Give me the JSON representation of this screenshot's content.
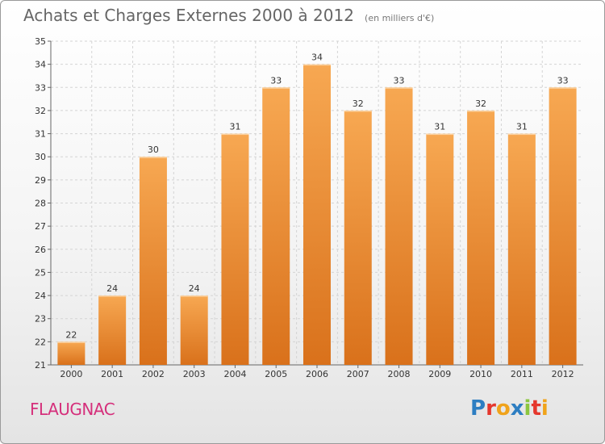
{
  "header": {
    "title": "Achats et Charges Externes 2000 à 2012",
    "unit": "(en milliers d'€)"
  },
  "footer": {
    "commune": "FLAUGNAC",
    "logo_text": "Proxiti"
  },
  "colors": {
    "bar_top": "#f7a852",
    "bar_bottom": "#d9711b",
    "commune": "#d52f7b",
    "logo": [
      "#2d7ec2",
      "#e5372d",
      "#f0a31b",
      "#2d7ec2",
      "#8cc63f",
      "#e5372d",
      "#f0a31b"
    ]
  },
  "chart_data": {
    "type": "bar",
    "title": "Achats et Charges Externes 2000 à 2012",
    "subtitle": "(en milliers d'€)",
    "xlabel": "",
    "ylabel": "",
    "categories": [
      "2000",
      "2001",
      "2002",
      "2003",
      "2004",
      "2005",
      "2006",
      "2007",
      "2008",
      "2009",
      "2010",
      "2011",
      "2012"
    ],
    "values": [
      22,
      24,
      30,
      24,
      31,
      33,
      34,
      32,
      33,
      31,
      32,
      31,
      33
    ],
    "ylim": [
      21,
      35
    ],
    "yticks": [
      21,
      22,
      23,
      24,
      25,
      26,
      27,
      28,
      29,
      30,
      31,
      32,
      33,
      34,
      35
    ],
    "grid": true,
    "data_labels": true
  }
}
